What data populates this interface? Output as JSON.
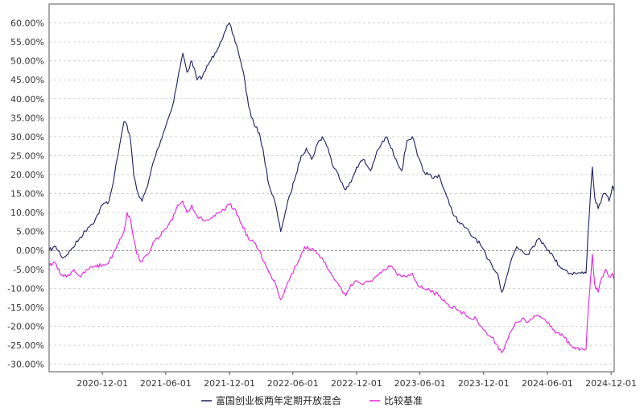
{
  "chart_data": {
    "type": "line",
    "title": "",
    "xlabel": "",
    "ylabel": "",
    "ylim": [
      -0.32,
      0.65
    ],
    "yticks": [
      -0.3,
      -0.25,
      -0.2,
      -0.15,
      -0.1,
      -0.05,
      0.0,
      0.05,
      0.1,
      0.15,
      0.2,
      0.25,
      0.3,
      0.35,
      0.4,
      0.45,
      0.5,
      0.55,
      0.6
    ],
    "ytick_labels": [
      "-30.00%",
      "-25.00%",
      "-20.00%",
      "-15.00%",
      "-10.00%",
      "-5.00%",
      "0.00%",
      "5.00%",
      "10.00%",
      "15.00%",
      "20.00%",
      "25.00%",
      "30.00%",
      "35.00%",
      "40.00%",
      "45.00%",
      "50.00%",
      "55.00%",
      "60.00%"
    ],
    "xlim": [
      "2020-07-01",
      "2024-12-10"
    ],
    "xticks": [
      "2020-12-01",
      "2021-06-01",
      "2021-12-01",
      "2022-06-01",
      "2022-12-01",
      "2023-06-01",
      "2023-12-01",
      "2024-06-01",
      "2024-12-01"
    ],
    "grid": true,
    "legend_position": "bottom-center",
    "series": [
      {
        "name": "富国创业板两年定期开放混合",
        "color": "#1b1f5e",
        "points": [
          [
            "2020-07-01",
            0.0
          ],
          [
            "2020-07-20",
            0.01
          ],
          [
            "2020-08-10",
            -0.02
          ],
          [
            "2020-09-01",
            0.0
          ],
          [
            "2020-09-25",
            0.03
          ],
          [
            "2020-10-20",
            0.06
          ],
          [
            "2020-11-10",
            0.08
          ],
          [
            "2020-12-01",
            0.12
          ],
          [
            "2020-12-20",
            0.13
          ],
          [
            "2021-01-05",
            0.2
          ],
          [
            "2021-01-20",
            0.28
          ],
          [
            "2021-02-01",
            0.34
          ],
          [
            "2021-02-10",
            0.33
          ],
          [
            "2021-02-20",
            0.29
          ],
          [
            "2021-03-01",
            0.2
          ],
          [
            "2021-03-10",
            0.16
          ],
          [
            "2021-03-25",
            0.13
          ],
          [
            "2021-04-10",
            0.17
          ],
          [
            "2021-04-25",
            0.23
          ],
          [
            "2021-05-10",
            0.27
          ],
          [
            "2021-05-25",
            0.31
          ],
          [
            "2021-06-05",
            0.34
          ],
          [
            "2021-06-20",
            0.38
          ],
          [
            "2021-07-05",
            0.45
          ],
          [
            "2021-07-20",
            0.52
          ],
          [
            "2021-08-01",
            0.47
          ],
          [
            "2021-08-15",
            0.5
          ],
          [
            "2021-08-30",
            0.45
          ],
          [
            "2021-09-15",
            0.46
          ],
          [
            "2021-10-01",
            0.49
          ],
          [
            "2021-10-20",
            0.52
          ],
          [
            "2021-11-05",
            0.55
          ],
          [
            "2021-11-20",
            0.58
          ],
          [
            "2021-12-01",
            0.6
          ],
          [
            "2021-12-10",
            0.57
          ],
          [
            "2021-12-25",
            0.53
          ],
          [
            "2022-01-10",
            0.47
          ],
          [
            "2022-01-25",
            0.38
          ],
          [
            "2022-02-10",
            0.33
          ],
          [
            "2022-02-25",
            0.31
          ],
          [
            "2022-03-10",
            0.25
          ],
          [
            "2022-03-25",
            0.17
          ],
          [
            "2022-04-10",
            0.13
          ],
          [
            "2022-04-27",
            0.05
          ],
          [
            "2022-05-10",
            0.1
          ],
          [
            "2022-05-25",
            0.15
          ],
          [
            "2022-06-10",
            0.2
          ],
          [
            "2022-06-25",
            0.25
          ],
          [
            "2022-07-10",
            0.27
          ],
          [
            "2022-07-25",
            0.24
          ],
          [
            "2022-08-10",
            0.28
          ],
          [
            "2022-08-25",
            0.3
          ],
          [
            "2022-09-10",
            0.27
          ],
          [
            "2022-09-25",
            0.22
          ],
          [
            "2022-10-10",
            0.2
          ],
          [
            "2022-10-31",
            0.16
          ],
          [
            "2022-11-15",
            0.18
          ],
          [
            "2022-12-01",
            0.22
          ],
          [
            "2022-12-20",
            0.24
          ],
          [
            "2023-01-10",
            0.21
          ],
          [
            "2023-01-25",
            0.25
          ],
          [
            "2023-02-10",
            0.28
          ],
          [
            "2023-02-25",
            0.3
          ],
          [
            "2023-03-10",
            0.27
          ],
          [
            "2023-03-25",
            0.24
          ],
          [
            "2023-04-10",
            0.21
          ],
          [
            "2023-04-25",
            0.29
          ],
          [
            "2023-05-10",
            0.3
          ],
          [
            "2023-05-25",
            0.25
          ],
          [
            "2023-06-10",
            0.21
          ],
          [
            "2023-06-25",
            0.2
          ],
          [
            "2023-07-10",
            0.19
          ],
          [
            "2023-07-25",
            0.2
          ],
          [
            "2023-08-10",
            0.16
          ],
          [
            "2023-08-25",
            0.12
          ],
          [
            "2023-09-10",
            0.09
          ],
          [
            "2023-09-25",
            0.07
          ],
          [
            "2023-10-10",
            0.06
          ],
          [
            "2023-10-25",
            0.04
          ],
          [
            "2023-11-10",
            0.03
          ],
          [
            "2023-11-25",
            0.01
          ],
          [
            "2023-12-10",
            -0.02
          ],
          [
            "2023-12-25",
            -0.04
          ],
          [
            "2024-01-10",
            -0.06
          ],
          [
            "2024-01-22",
            -0.11
          ],
          [
            "2024-02-05",
            -0.07
          ],
          [
            "2024-02-20",
            -0.02
          ],
          [
            "2024-03-05",
            0.01
          ],
          [
            "2024-03-20",
            0.0
          ],
          [
            "2024-04-05",
            -0.01
          ],
          [
            "2024-04-20",
            0.01
          ],
          [
            "2024-05-05",
            0.03
          ],
          [
            "2024-05-20",
            0.02
          ],
          [
            "2024-06-05",
            0.0
          ],
          [
            "2024-06-20",
            -0.02
          ],
          [
            "2024-07-05",
            -0.04
          ],
          [
            "2024-07-20",
            -0.05
          ],
          [
            "2024-08-05",
            -0.06
          ],
          [
            "2024-08-20",
            -0.06
          ],
          [
            "2024-09-05",
            -0.06
          ],
          [
            "2024-09-20",
            -0.06
          ],
          [
            "2024-09-26",
            0.05
          ],
          [
            "2024-10-08",
            0.22
          ],
          [
            "2024-10-15",
            0.14
          ],
          [
            "2024-10-25",
            0.11
          ],
          [
            "2024-11-05",
            0.14
          ],
          [
            "2024-11-15",
            0.15
          ],
          [
            "2024-11-25",
            0.13
          ],
          [
            "2024-12-05",
            0.17
          ],
          [
            "2024-12-10",
            0.155
          ]
        ]
      },
      {
        "name": "比较基准",
        "color": "#e81fe0",
        "points": [
          [
            "2020-07-01",
            -0.04
          ],
          [
            "2020-07-15",
            -0.03
          ],
          [
            "2020-08-01",
            -0.06
          ],
          [
            "2020-08-20",
            -0.07
          ],
          [
            "2020-09-10",
            -0.05
          ],
          [
            "2020-09-30",
            -0.07
          ],
          [
            "2020-10-20",
            -0.05
          ],
          [
            "2020-11-10",
            -0.04
          ],
          [
            "2020-12-01",
            -0.04
          ],
          [
            "2020-12-20",
            -0.03
          ],
          [
            "2021-01-05",
            0.0
          ],
          [
            "2021-01-20",
            0.03
          ],
          [
            "2021-02-01",
            0.05
          ],
          [
            "2021-02-10",
            0.1
          ],
          [
            "2021-02-20",
            0.08
          ],
          [
            "2021-03-01",
            0.03
          ],
          [
            "2021-03-10",
            -0.01
          ],
          [
            "2021-03-25",
            -0.03
          ],
          [
            "2021-04-10",
            -0.01
          ],
          [
            "2021-04-25",
            0.02
          ],
          [
            "2021-05-10",
            0.03
          ],
          [
            "2021-05-25",
            0.05
          ],
          [
            "2021-06-05",
            0.06
          ],
          [
            "2021-06-20",
            0.08
          ],
          [
            "2021-07-05",
            0.12
          ],
          [
            "2021-07-20",
            0.13
          ],
          [
            "2021-08-01",
            0.1
          ],
          [
            "2021-08-15",
            0.12
          ],
          [
            "2021-08-30",
            0.09
          ],
          [
            "2021-09-15",
            0.08
          ],
          [
            "2021-10-01",
            0.08
          ],
          [
            "2021-10-20",
            0.09
          ],
          [
            "2021-11-05",
            0.1
          ],
          [
            "2021-11-20",
            0.11
          ],
          [
            "2021-12-01",
            0.12
          ],
          [
            "2021-12-15",
            0.11
          ],
          [
            "2022-01-05",
            0.07
          ],
          [
            "2022-01-25",
            0.03
          ],
          [
            "2022-02-10",
            0.02
          ],
          [
            "2022-02-25",
            0.0
          ],
          [
            "2022-03-10",
            -0.03
          ],
          [
            "2022-03-25",
            -0.06
          ],
          [
            "2022-04-10",
            -0.08
          ],
          [
            "2022-04-27",
            -0.13
          ],
          [
            "2022-05-10",
            -0.1
          ],
          [
            "2022-05-25",
            -0.07
          ],
          [
            "2022-06-10",
            -0.04
          ],
          [
            "2022-06-25",
            -0.01
          ],
          [
            "2022-07-05",
            0.01
          ],
          [
            "2022-07-20",
            0.0
          ],
          [
            "2022-08-05",
            0.0
          ],
          [
            "2022-08-25",
            -0.02
          ],
          [
            "2022-09-10",
            -0.05
          ],
          [
            "2022-09-25",
            -0.07
          ],
          [
            "2022-10-10",
            -0.09
          ],
          [
            "2022-10-31",
            -0.12
          ],
          [
            "2022-11-15",
            -0.09
          ],
          [
            "2022-12-01",
            -0.08
          ],
          [
            "2022-12-20",
            -0.09
          ],
          [
            "2023-01-10",
            -0.08
          ],
          [
            "2023-01-25",
            -0.07
          ],
          [
            "2023-02-10",
            -0.06
          ],
          [
            "2023-02-25",
            -0.05
          ],
          [
            "2023-03-10",
            -0.04
          ],
          [
            "2023-03-25",
            -0.06
          ],
          [
            "2023-04-10",
            -0.07
          ],
          [
            "2023-04-25",
            -0.07
          ],
          [
            "2023-05-10",
            -0.06
          ],
          [
            "2023-05-25",
            -0.09
          ],
          [
            "2023-06-10",
            -0.1
          ],
          [
            "2023-06-25",
            -0.1
          ],
          [
            "2023-07-10",
            -0.11
          ],
          [
            "2023-07-25",
            -0.12
          ],
          [
            "2023-08-10",
            -0.13
          ],
          [
            "2023-08-25",
            -0.15
          ],
          [
            "2023-09-10",
            -0.15
          ],
          [
            "2023-09-25",
            -0.16
          ],
          [
            "2023-10-10",
            -0.17
          ],
          [
            "2023-10-25",
            -0.18
          ],
          [
            "2023-11-10",
            -0.18
          ],
          [
            "2023-11-25",
            -0.2
          ],
          [
            "2023-12-10",
            -0.22
          ],
          [
            "2023-12-25",
            -0.23
          ],
          [
            "2024-01-10",
            -0.25
          ],
          [
            "2024-01-22",
            -0.27
          ],
          [
            "2024-02-05",
            -0.24
          ],
          [
            "2024-02-20",
            -0.21
          ],
          [
            "2024-03-05",
            -0.19
          ],
          [
            "2024-03-20",
            -0.18
          ],
          [
            "2024-04-05",
            -0.19
          ],
          [
            "2024-04-20",
            -0.18
          ],
          [
            "2024-05-05",
            -0.17
          ],
          [
            "2024-05-20",
            -0.18
          ],
          [
            "2024-06-05",
            -0.19
          ],
          [
            "2024-06-20",
            -0.21
          ],
          [
            "2024-07-05",
            -0.22
          ],
          [
            "2024-07-20",
            -0.23
          ],
          [
            "2024-08-05",
            -0.25
          ],
          [
            "2024-08-20",
            -0.26
          ],
          [
            "2024-09-05",
            -0.26
          ],
          [
            "2024-09-20",
            -0.26
          ],
          [
            "2024-09-26",
            -0.16
          ],
          [
            "2024-10-08",
            -0.01
          ],
          [
            "2024-10-15",
            -0.09
          ],
          [
            "2024-10-25",
            -0.11
          ],
          [
            "2024-11-05",
            -0.07
          ],
          [
            "2024-11-15",
            -0.05
          ],
          [
            "2024-11-25",
            -0.07
          ],
          [
            "2024-12-05",
            -0.06
          ],
          [
            "2024-12-10",
            -0.075
          ]
        ]
      }
    ]
  }
}
